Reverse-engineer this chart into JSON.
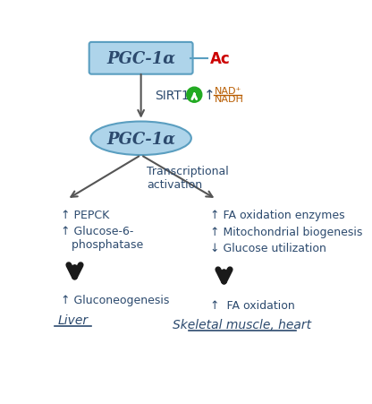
{
  "fig_width": 4.16,
  "fig_height": 4.52,
  "bg_color": "#ffffff",
  "box_color": "#aed4ea",
  "box_edge_color": "#5a9ec0",
  "ellipse_color": "#aed4ea",
  "ellipse_edge_color": "#5a9ec0",
  "text_color": "#2c4a6e",
  "arrow_color": "#555555",
  "bold_arrow_color": "#1a1a1a",
  "ac_color": "#cc0000",
  "nad_color": "#b85c00",
  "green_circle_color": "#22aa22",
  "title_top": "PGC-1α",
  "title_bottom": "PGC-1α",
  "ac_label": "Ac",
  "sirt1_label": "SIRT1",
  "nad_label": "NAD⁺",
  "nadh_label": "NADH",
  "transcriptional_label": "Transcriptional\nactivation",
  "left_items": [
    "↑ PEPCK",
    "↑ Glucose-6-\n   phosphatase"
  ],
  "left_result": "↑ Gluconeogenesis",
  "left_organ": "Liver",
  "right_items": [
    "↑ FA oxidation enzymes",
    "↑ Mitochondrial biogenesis",
    "↓ Glucose utilization"
  ],
  "right_result": "↑  FA oxidation",
  "right_organ": "Skeletal muscle, heart"
}
